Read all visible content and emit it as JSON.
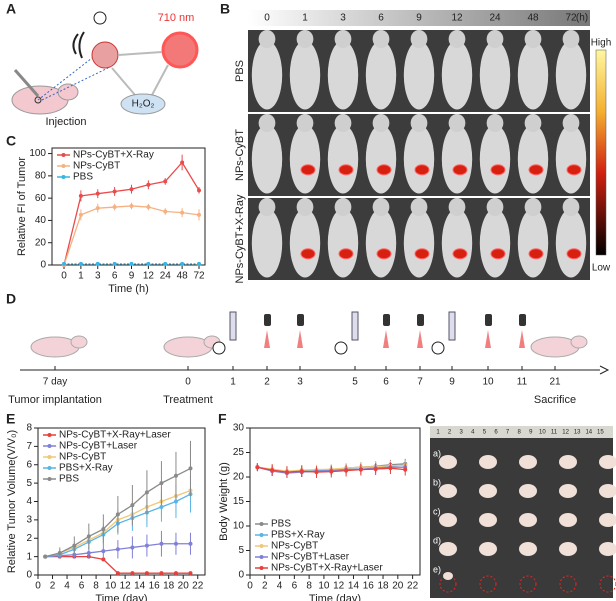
{
  "panel_letters": [
    "A",
    "B",
    "C",
    "D",
    "E",
    "F",
    "G"
  ],
  "panel_a": {
    "wavelength": "710 nm",
    "reactant": "H₂O₂",
    "step": "Injection"
  },
  "panel_b": {
    "time_labels": [
      "0",
      "1",
      "3",
      "6",
      "9",
      "12",
      "24",
      "48",
      "72"
    ],
    "unit": "(h)",
    "rows": [
      "PBS",
      "NPs-CyBT",
      "NPs-CyBT+X-Ray"
    ],
    "colorbar": [
      "High",
      "Low"
    ]
  },
  "panel_d": {
    "days": [
      "7 day",
      "0",
      "1",
      "2",
      "3",
      "5",
      "6",
      "7",
      "9",
      "10",
      "11",
      "21"
    ],
    "events": [
      "Tumor implantation",
      "Treatment",
      "Sacrifice"
    ]
  },
  "panel_g": {
    "ruler": [
      "1",
      "2",
      "3",
      "4",
      "5",
      "6",
      "7",
      "8",
      "9",
      "10",
      "11",
      "12",
      "13",
      "14",
      "15"
    ],
    "rows": [
      "a)",
      "b)",
      "c)",
      "d)",
      "e)"
    ]
  },
  "chart_data": [
    {
      "type": "line",
      "x_label": "Time (h)",
      "y_label": "Relative FI of Tumor",
      "categories": [
        "0",
        "1",
        "3",
        "6",
        "9",
        "12",
        "24",
        "48",
        "72"
      ],
      "ylim": [
        0,
        105
      ],
      "yticks": [
        0,
        20,
        40,
        60,
        80,
        100
      ],
      "legend": "upper left",
      "series": [
        {
          "name": "NPs-CyBT+X-Ray",
          "color": "#e84c4c",
          "values": [
            0,
            62,
            64,
            66,
            68,
            72,
            75,
            92,
            67
          ],
          "errors": [
            0,
            5,
            4,
            4,
            4,
            4,
            3,
            7,
            3
          ]
        },
        {
          "name": "NPs-CyBT",
          "color": "#f6b183",
          "values": [
            0,
            45,
            51,
            52,
            53,
            52,
            48,
            47,
            45
          ],
          "errors": [
            0,
            5,
            4,
            3,
            3,
            3,
            3,
            4,
            5
          ]
        },
        {
          "name": "PBS",
          "color": "#35b6e6",
          "values": [
            1,
            1,
            1,
            1,
            1,
            1,
            1,
            1,
            1
          ],
          "errors": [
            0,
            0.5,
            0.5,
            0.5,
            0.5,
            0.5,
            0.5,
            0.5,
            0.5
          ]
        }
      ]
    },
    {
      "type": "line",
      "x_label": "Time (day)",
      "y_label": "Relative Tumor Volume(V/V₀)",
      "x": [
        1,
        3,
        5,
        7,
        9,
        11,
        13,
        15,
        17,
        19,
        21
      ],
      "xlim": [
        0,
        23
      ],
      "xticks": [
        0,
        2,
        4,
        6,
        8,
        10,
        12,
        14,
        16,
        18,
        20,
        22
      ],
      "ylim": [
        0,
        8
      ],
      "yticks": [
        0,
        1,
        2,
        3,
        4,
        5,
        6,
        7,
        8
      ],
      "legend": "upper left",
      "series": [
        {
          "name": "NPs-CyBT+X-Ray+Laser",
          "color": "#e8403c",
          "values": [
            1,
            1,
            1,
            1,
            0.85,
            0.1,
            0.1,
            0.1,
            0.1,
            0.1,
            0.1
          ],
          "errors": [
            0,
            0,
            0,
            0,
            0.1,
            0,
            0,
            0,
            0,
            0,
            0
          ]
        },
        {
          "name": "NPs-CyBT+Laser",
          "color": "#8080d8",
          "values": [
            1,
            1.05,
            1.1,
            1.2,
            1.3,
            1.4,
            1.5,
            1.6,
            1.7,
            1.7,
            1.7
          ],
          "errors": [
            0,
            0.1,
            0.2,
            0.3,
            0.4,
            0.5,
            0.6,
            0.6,
            0.7,
            0.6,
            0.6
          ]
        },
        {
          "name": "NPs-CyBT",
          "color": "#f0c878",
          "values": [
            1,
            1.2,
            1.5,
            1.9,
            2.3,
            3,
            3.3,
            3.7,
            4,
            4.3,
            4.6
          ],
          "errors": [
            0,
            0.2,
            0.3,
            0.4,
            0.5,
            0.6,
            0.7,
            0.8,
            0.8,
            0.9,
            1
          ]
        },
        {
          "name": "PBS+X-Ray",
          "color": "#5ab4e6",
          "values": [
            1,
            1.1,
            1.4,
            1.8,
            2.2,
            2.8,
            3.1,
            3.4,
            3.7,
            4,
            4.4
          ],
          "errors": [
            0,
            0.2,
            0.3,
            0.4,
            0.5,
            0.6,
            0.7,
            0.8,
            0.8,
            0.9,
            1
          ]
        },
        {
          "name": "PBS",
          "color": "#8a8a8a",
          "values": [
            1,
            1.2,
            1.6,
            2.1,
            2.5,
            3.3,
            3.8,
            4.5,
            5,
            5.4,
            5.8
          ],
          "errors": [
            0,
            0.3,
            0.5,
            0.7,
            0.8,
            1,
            1.1,
            1.2,
            1.2,
            1.3,
            1.5
          ]
        }
      ]
    },
    {
      "type": "line",
      "x_label": "Time (day)",
      "y_label": "Body Weight (g)",
      "x": [
        1,
        3,
        5,
        7,
        9,
        11,
        13,
        15,
        17,
        19,
        21
      ],
      "xlim": [
        0,
        23
      ],
      "xticks": [
        0,
        2,
        4,
        6,
        8,
        10,
        12,
        14,
        16,
        18,
        20,
        22
      ],
      "ylim": [
        0,
        30
      ],
      "yticks": [
        0,
        5,
        10,
        15,
        20,
        25,
        30
      ],
      "legend": "lower left",
      "series": [
        {
          "name": "PBS",
          "color": "#8a8a8a",
          "values": [
            22,
            21.5,
            21,
            21,
            21.2,
            21.5,
            21.8,
            22,
            22.2,
            22.5,
            22.7
          ],
          "errors": [
            0.8,
            1,
            1,
            1,
            1,
            1,
            1,
            1,
            1,
            1,
            1
          ]
        },
        {
          "name": "PBS+X-Ray",
          "color": "#5ab4e6",
          "values": [
            22,
            21.3,
            21,
            21.2,
            21.3,
            21.5,
            21.7,
            22,
            22,
            22.2,
            22.5
          ],
          "errors": [
            0.8,
            1,
            1,
            1,
            1,
            1,
            1,
            1,
            1,
            1,
            1
          ]
        },
        {
          "name": "NPs-CyBT",
          "color": "#f0c878",
          "values": [
            22,
            21.6,
            21.2,
            21.4,
            21.5,
            21.6,
            21.8,
            22,
            22.1,
            22.3,
            22.4
          ],
          "errors": [
            0.8,
            1,
            1,
            1,
            1,
            1,
            1,
            1,
            1,
            1,
            1
          ]
        },
        {
          "name": "NPs-CyBT+Laser",
          "color": "#8080d8",
          "values": [
            22,
            21.2,
            20.8,
            21,
            21.2,
            21.3,
            21.5,
            21.6,
            21.8,
            22,
            22
          ],
          "errors": [
            0.8,
            1,
            1,
            1,
            1,
            1,
            1,
            1,
            1,
            1,
            1
          ]
        },
        {
          "name": "NPs-CyBT+X-Ray+Laser",
          "color": "#e8403c",
          "values": [
            22,
            21.4,
            21,
            21.2,
            21,
            21.1,
            21.3,
            21.5,
            21.6,
            21.8,
            21.5
          ],
          "errors": [
            0.8,
            1.2,
            1.2,
            1.2,
            1.2,
            1.2,
            1.2,
            1.2,
            1.2,
            1.2,
            1.2
          ]
        }
      ]
    }
  ]
}
